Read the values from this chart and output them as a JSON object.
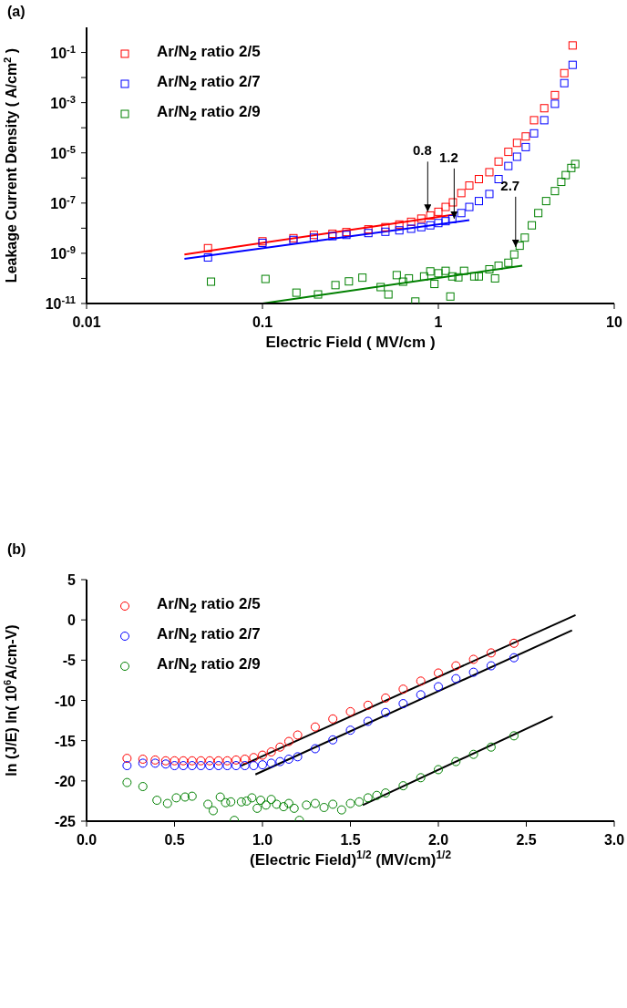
{
  "chart_data": [
    {
      "type": "scatter",
      "xlabel": "Electric Field ( MV/cm )",
      "ylabel": "Leakage Current Density ( A/cm$^{2}$ )",
      "log": "xy",
      "xlim": [
        0.01,
        10
      ],
      "xticks": [
        0.01,
        0.1,
        1,
        10
      ],
      "ylim": [
        1e-11,
        1
      ],
      "yticks": [
        {
          "value": 1e-11,
          "label": "10$^{-11}$"
        },
        {
          "value": 1e-10,
          "label": null
        },
        {
          "value": 1e-09,
          "label": "10$^{-9}$"
        },
        {
          "value": 1e-08,
          "label": null
        },
        {
          "value": 1e-07,
          "label": "10$^{-7}$"
        },
        {
          "value": 1e-06,
          "label": null
        },
        {
          "value": 1e-05,
          "label": "10$^{-5}$"
        },
        {
          "value": 0.0001,
          "label": null
        },
        {
          "value": 0.001,
          "label": "10$^{-3}$"
        },
        {
          "value": 0.01,
          "label": null
        },
        {
          "value": 0.1,
          "label": "10$^{-1}$"
        }
      ],
      "legend": "top left",
      "marker": "square",
      "annotations": [
        "(a)",
        {
          "text": "0.8",
          "x": 0.87,
          "y": 4.5e-08
        },
        {
          "text": "1.2",
          "x": 1.23,
          "y": 2.4e-08
        },
        {
          "text": "2.7",
          "x": 2.75,
          "y": 1.8e-09
        }
      ],
      "series": [
        {
          "name": "Ar/N$_{2}$ ratio 2/5",
          "color": "#ff0000",
          "x": [
            0.049,
            0.1,
            0.15,
            0.196,
            0.25,
            0.3,
            0.4,
            0.5,
            0.6,
            0.7,
            0.8,
            0.9,
            1.0,
            1.1,
            1.21,
            1.35,
            1.5,
            1.7,
            1.95,
            2.2,
            2.5,
            2.8,
            3.14,
            3.5,
            4.0,
            4.6,
            5.2,
            5.8
          ],
          "values": [
            1.6e-09,
            3e-09,
            4e-09,
            5.4e-09,
            6e-09,
            7e-09,
            9e-09,
            1.1e-08,
            1.4e-08,
            1.8e-08,
            2.4e-08,
            3.2e-08,
            4.5e-08,
            7e-08,
            1.07e-07,
            2.5e-07,
            5e-07,
            9e-07,
            1.7e-06,
            4.5e-06,
            1.1e-05,
            2.5e-05,
            4.5e-05,
            0.0002,
            0.0006,
            0.002,
            0.015,
            0.19
          ]
        },
        {
          "name": "Ar/N$_{2}$ ratio 2/7",
          "color": "#0000ff",
          "x": [
            0.049,
            0.1,
            0.15,
            0.196,
            0.25,
            0.3,
            0.4,
            0.5,
            0.6,
            0.7,
            0.8,
            0.9,
            1.0,
            1.1,
            1.2,
            1.35,
            1.5,
            1.7,
            1.95,
            2.2,
            2.5,
            2.8,
            3.14,
            3.5,
            4.0,
            4.6,
            5.2,
            5.8
          ],
          "values": [
            6.8e-10,
            2.6e-09,
            3.4e-09,
            4.2e-09,
            4.8e-09,
            5.4e-09,
            6.4e-09,
            7.2e-09,
            8.2e-09,
            9.5e-09,
            1.1e-08,
            1.3e-08,
            1.6e-08,
            1.9e-08,
            2.3e-08,
            4e-08,
            7e-08,
            1.2e-07,
            2.3e-07,
            9e-07,
            3e-06,
            7e-06,
            1.7e-05,
            6e-05,
            0.0002,
            0.0009,
            0.006,
            0.032
          ]
        },
        {
          "name": "Ar/N$_{2}$ ratio 2/9",
          "color": "#008000",
          "x": [
            0.051,
            0.104,
            0.156,
            0.207,
            0.26,
            0.31,
            0.37,
            0.47,
            0.52,
            0.58,
            0.63,
            0.68,
            0.74,
            0.83,
            0.9,
            0.95,
            1.0,
            1.1,
            1.17,
            1.2,
            1.3,
            1.4,
            1.6,
            1.7,
            1.95,
            2.1,
            2.2,
            2.5,
            2.7,
            2.9,
            3.1,
            3.4,
            3.7,
            4.1,
            4.6,
            5.0,
            5.3,
            5.7,
            6.0
          ],
          "values": [
            7.4e-11,
            9.5e-11,
            2.7e-11,
            2.3e-11,
            5.4e-11,
            7.6e-11,
            1.07e-10,
            4.5e-11,
            2.3e-11,
            1.35e-10,
            7.4e-11,
            1e-10,
            1.2e-11,
            1.2e-10,
            1.9e-10,
            6e-11,
            1.6e-10,
            2e-10,
            1.9e-11,
            1.2e-10,
            1.1e-10,
            2e-10,
            1.2e-10,
            1.2e-10,
            2.3e-10,
            1e-10,
            3.2e-10,
            4.2e-10,
            9e-10,
            2e-09,
            4.2e-09,
            1.3e-08,
            4e-08,
            1.2e-07,
            3e-07,
            7e-07,
            1.3e-06,
            2.5e-06,
            3.6e-06
          ]
        },
        {
          "type": "line",
          "marker": "none",
          "color": "#ff0000",
          "x": [
            0.036,
            1.2
          ],
          "values": [
            9e-10,
            3.4e-08
          ]
        },
        {
          "type": "line",
          "marker": "none",
          "color": "#0000ff",
          "x": [
            0.036,
            1.5
          ],
          "values": [
            6e-10,
            2.1e-08
          ]
        },
        {
          "type": "line",
          "marker": "none",
          "color": "#008000",
          "x": [
            0.1,
            3.0
          ],
          "values": [
            1e-11,
            3.2e-10
          ]
        }
      ]
    },
    {
      "type": "scatter",
      "xlabel": "(Electric Field)$^{1/2}$ (MV/cm)$^{1/2}$",
      "ylabel": "ln (J/E) ln( 10$^{6}$A/cm-V)",
      "xlim": [
        0,
        3
      ],
      "xticks": [
        {
          "value": 0,
          "label": "0.0"
        },
        {
          "value": 0.5,
          "label": "0.5"
        },
        {
          "value": 1,
          "label": "1.0"
        },
        {
          "value": 1.5,
          "label": "1.5"
        },
        {
          "value": 2,
          "label": "2.0"
        },
        {
          "value": 2.5,
          "label": "2.5"
        },
        {
          "value": 3,
          "label": "3.0"
        }
      ],
      "ylim": [
        -25,
        5
      ],
      "yticks": [
        -25,
        -20,
        -15,
        -10,
        -5,
        0,
        5
      ],
      "legend": "top left",
      "marker": "circle",
      "annotations": [
        "(b)"
      ],
      "series": [
        {
          "name": "Ar/N$_{2}$ ratio 2/5",
          "color": "#ff0000",
          "x": [
            0.23,
            0.32,
            0.39,
            0.45,
            0.5,
            0.55,
            0.6,
            0.65,
            0.7,
            0.75,
            0.8,
            0.85,
            0.9,
            0.95,
            1.0,
            1.05,
            1.1,
            1.15,
            1.2,
            1.3,
            1.4,
            1.5,
            1.6,
            1.7,
            1.8,
            1.9,
            2.0,
            2.1,
            2.2,
            2.3,
            2.43
          ],
          "values": [
            -17.2,
            -17.3,
            -17.4,
            -17.5,
            -17.5,
            -17.5,
            -17.5,
            -17.5,
            -17.5,
            -17.5,
            -17.5,
            -17.4,
            -17.3,
            -17.1,
            -16.8,
            -16.4,
            -15.8,
            -15.1,
            -14.3,
            -13.3,
            -12.3,
            -11.4,
            -10.6,
            -9.7,
            -8.6,
            -7.6,
            -6.6,
            -5.7,
            -4.9,
            -4.1,
            -2.9
          ]
        },
        {
          "name": "Ar/N$_{2}$ ratio 2/7",
          "color": "#0000ff",
          "x": [
            0.23,
            0.32,
            0.39,
            0.45,
            0.5,
            0.55,
            0.6,
            0.65,
            0.7,
            0.75,
            0.8,
            0.85,
            0.9,
            0.95,
            1.0,
            1.05,
            1.1,
            1.15,
            1.2,
            1.3,
            1.4,
            1.5,
            1.6,
            1.7,
            1.8,
            1.9,
            2.0,
            2.1,
            2.2,
            2.3,
            2.43
          ],
          "values": [
            -18.1,
            -17.8,
            -17.8,
            -17.9,
            -18.1,
            -18.1,
            -18.1,
            -18.1,
            -18.1,
            -18.1,
            -18.1,
            -18.1,
            -18.1,
            -18.1,
            -18.0,
            -17.8,
            -17.6,
            -17.3,
            -17.0,
            -16.0,
            -14.9,
            -13.7,
            -12.6,
            -11.5,
            -10.4,
            -9.3,
            -8.3,
            -7.3,
            -6.5,
            -5.7,
            -4.7
          ]
        },
        {
          "name": "Ar/N$_{2}$ ratio 2/9",
          "color": "#008000",
          "x": [
            0.23,
            0.32,
            0.4,
            0.46,
            0.51,
            0.56,
            0.6,
            0.69,
            0.72,
            0.76,
            0.79,
            0.82,
            0.84,
            0.88,
            0.91,
            0.94,
            0.97,
            0.99,
            1.02,
            1.05,
            1.08,
            1.12,
            1.15,
            1.18,
            1.21,
            1.25,
            1.3,
            1.35,
            1.4,
            1.45,
            1.5,
            1.55,
            1.6,
            1.65,
            1.7,
            1.8,
            1.9,
            2.0,
            2.1,
            2.2,
            2.3,
            2.43
          ],
          "values": [
            -20.2,
            -20.7,
            -22.4,
            -22.8,
            -22.1,
            -22.0,
            -21.9,
            -22.9,
            -23.7,
            -22.0,
            -22.7,
            -22.6,
            -24.9,
            -22.6,
            -22.5,
            -22.1,
            -23.4,
            -22.4,
            -23.0,
            -22.3,
            -22.9,
            -23.2,
            -22.8,
            -23.4,
            -24.9,
            -23.0,
            -22.8,
            -23.3,
            -22.9,
            -23.6,
            -22.8,
            -22.6,
            -22.1,
            -21.8,
            -21.5,
            -20.6,
            -19.6,
            -18.6,
            -17.6,
            -16.7,
            -15.8,
            -14.4
          ]
        },
        {
          "type": "line",
          "marker": "none",
          "color": "#000000",
          "x": [
            0.88,
            2.78
          ],
          "values": [
            -18.1,
            0.6
          ]
        },
        {
          "type": "line",
          "marker": "none",
          "color": "#000000",
          "x": [
            0.96,
            2.76
          ],
          "values": [
            -19.2,
            -1.3
          ]
        },
        {
          "type": "line",
          "marker": "none",
          "color": "#000000",
          "x": [
            1.57,
            2.65
          ],
          "values": [
            -23.0,
            -12.0
          ]
        }
      ]
    }
  ]
}
